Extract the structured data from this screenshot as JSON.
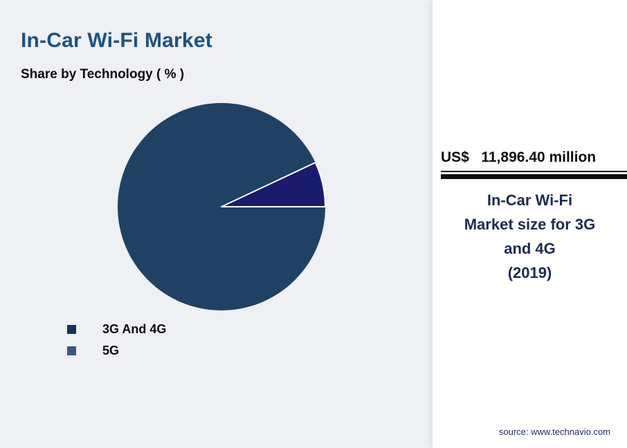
{
  "page": {
    "background": "#eef0f3",
    "panel_background": "#ffffff"
  },
  "header": {
    "title": "In-Car Wi-Fi Market",
    "title_color": "#1e527e",
    "subtitle": "Share by Technology ( % )"
  },
  "chart_data": {
    "type": "pie",
    "title": "In-Car Wi-Fi Market — Share by Technology (%)",
    "slices": [
      {
        "label": "3G And 4G",
        "value": 93,
        "color": "#1f4164",
        "legend_color": "#14325a"
      },
      {
        "label": "5G",
        "value": 7,
        "color": "#1b1b6e",
        "legend_color": "#3d5486"
      }
    ],
    "rotation_deg": 90,
    "stroke_color": "#ffffff",
    "legend_position": "bottom-left"
  },
  "panel": {
    "value_line": "US$   11,896.40 million",
    "caption": "In-Car Wi-Fi\nMarket size for 3G\nand 4G\n(2019)",
    "source": "source: www.technavio.com"
  }
}
